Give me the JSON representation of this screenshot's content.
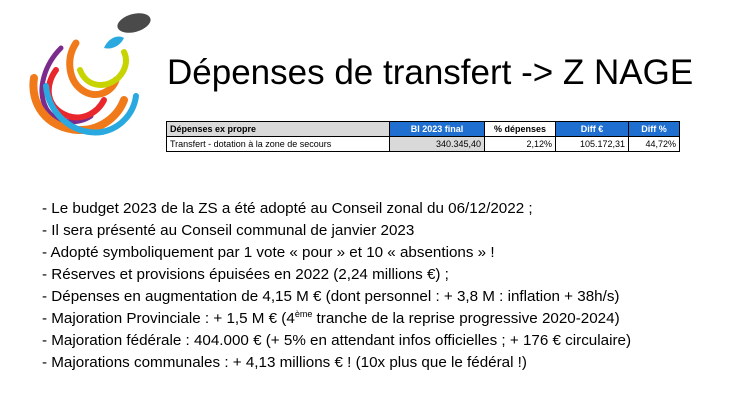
{
  "title": "Dépenses de transfert -> Z NAGE",
  "logo": {
    "icon": "abstract-swirl-logo",
    "colors": [
      "#f07a1a",
      "#2aa9e0",
      "#c8d400",
      "#7b2b8c",
      "#e8262c",
      "#4a4a4a"
    ]
  },
  "table": {
    "headers": [
      "Dépenses ex propre",
      "BI 2023 final",
      "% dépenses",
      "Diff €",
      "Diff %"
    ],
    "row": {
      "label": "Transfert - dotation à la zone de secours",
      "bi": "340.345,40",
      "pct": "2,12%",
      "diff": "105.172,31",
      "diffp": "44,72%"
    },
    "accent": "#1f6fd0",
    "shade": "#d9d9d9"
  },
  "bullets": [
    {
      "text": "- Le budget 2023 de la ZS a été adopté au Conseil zonal du 06/12/2022 ;"
    },
    {
      "text": "- Il sera présenté au Conseil communal de janvier 2023"
    },
    {
      "text": "- Adopté symboliquement par 1 vote « pour » et 10 « absentions » !"
    },
    {
      "text": "- Réserves et provisions épuisées en 2022 (2,24 millions €) ;"
    },
    {
      "text": "- Dépenses en augmentation de 4,15 M € (dont personnel : + 3,8 M : inflation + 38h/s)"
    },
    {
      "pre": "- Majoration Provinciale : + 1,5 M € (4",
      "sup": "ème",
      "post": " tranche de la reprise progressive 2020-2024)"
    },
    {
      "text": "- Majoration fédérale : 404.000 € (+ 5% en attendant infos officielles ; + 176 € circulaire)"
    },
    {
      "text": "- Majorations communales : + 4,13 millions € ! (10x plus que le fédéral !)"
    }
  ]
}
